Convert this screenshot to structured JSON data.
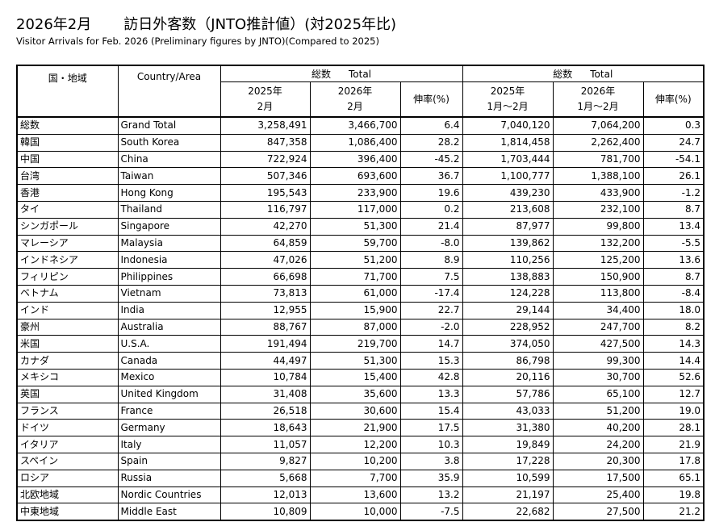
{
  "header": {
    "title": "2026年2月",
    "title_main": "訪日外客数（JNTO推計値）(対2025年比)",
    "subtitle": "Visitor Arrivals for Feb. 2026 (Preliminary figures by JNTO)(Compared to 2025)"
  },
  "table": {
    "columns": {
      "region": "国・地域",
      "country": "Country/Area",
      "group_month": {
        "label": "総数",
        "sub": "Total",
        "col_2025": [
          "2025年",
          "2月"
        ],
        "col_2026": [
          "2026年",
          "2月"
        ],
        "growth": "伸率(%)"
      },
      "group_ytd": {
        "label": "総数",
        "sub": "Total",
        "col_2025": [
          "2025年",
          "1月～2月"
        ],
        "col_2026": [
          "2026年",
          "1月～2月"
        ],
        "growth": "伸率(%)"
      }
    },
    "rows": [
      [
        "総数",
        "Grand Total",
        "3,258,491",
        "3,466,700",
        "6.4",
        "7,040,120",
        "7,064,200",
        "0.3"
      ],
      [
        "韓国",
        "South Korea",
        "847,358",
        "1,086,400",
        "28.2",
        "1,814,458",
        "2,262,400",
        "24.7"
      ],
      [
        "中国",
        "China",
        "722,924",
        "396,400",
        "-45.2",
        "1,703,444",
        "781,700",
        "-54.1"
      ],
      [
        "台湾",
        "Taiwan",
        "507,346",
        "693,600",
        "36.7",
        "1,100,777",
        "1,388,100",
        "26.1"
      ],
      [
        "香港",
        "Hong Kong",
        "195,543",
        "233,900",
        "19.6",
        "439,230",
        "433,900",
        "-1.2"
      ],
      [
        "タイ",
        "Thailand",
        "116,797",
        "117,000",
        "0.2",
        "213,608",
        "232,100",
        "8.7"
      ],
      [
        "シンガポール",
        "Singapore",
        "42,270",
        "51,300",
        "21.4",
        "87,977",
        "99,800",
        "13.4"
      ],
      [
        "マレーシア",
        "Malaysia",
        "64,859",
        "59,700",
        "-8.0",
        "139,862",
        "132,200",
        "-5.5"
      ],
      [
        "インドネシア",
        "Indonesia",
        "47,026",
        "51,200",
        "8.9",
        "110,256",
        "125,200",
        "13.6"
      ],
      [
        "フィリピン",
        "Philippines",
        "66,698",
        "71,700",
        "7.5",
        "138,883",
        "150,900",
        "8.7"
      ],
      [
        "ベトナム",
        "Vietnam",
        "73,813",
        "61,000",
        "-17.4",
        "124,228",
        "113,800",
        "-8.4"
      ],
      [
        "インド",
        "India",
        "12,955",
        "15,900",
        "22.7",
        "29,144",
        "34,400",
        "18.0"
      ],
      [
        "豪州",
        "Australia",
        "88,767",
        "87,000",
        "-2.0",
        "228,952",
        "247,700",
        "8.2"
      ],
      [
        "米国",
        "U.S.A.",
        "191,494",
        "219,700",
        "14.7",
        "374,050",
        "427,500",
        "14.3"
      ],
      [
        "カナダ",
        "Canada",
        "44,497",
        "51,300",
        "15.3",
        "86,798",
        "99,300",
        "14.4"
      ],
      [
        "メキシコ",
        "Mexico",
        "10,784",
        "15,400",
        "42.8",
        "20,116",
        "30,700",
        "52.6"
      ],
      [
        "英国",
        "United Kingdom",
        "31,408",
        "35,600",
        "13.3",
        "57,786",
        "65,100",
        "12.7"
      ],
      [
        "フランス",
        "France",
        "26,518",
        "30,600",
        "15.4",
        "43,033",
        "51,200",
        "19.0"
      ],
      [
        "ドイツ",
        "Germany",
        "18,643",
        "21,900",
        "17.5",
        "31,380",
        "40,200",
        "28.1"
      ],
      [
        "イタリア",
        "Italy",
        "11,057",
        "12,200",
        "10.3",
        "19,849",
        "24,200",
        "21.9"
      ],
      [
        "スペイン",
        "Spain",
        "9,827",
        "10,200",
        "3.8",
        "17,228",
        "20,300",
        "17.8"
      ],
      [
        "ロシア",
        "Russia",
        "5,668",
        "7,700",
        "35.9",
        "10,599",
        "17,500",
        "65.1"
      ],
      [
        "北欧地域",
        "Nordic Countries",
        "12,013",
        "13,600",
        "13.2",
        "21,197",
        "25,400",
        "19.8"
      ],
      [
        "中東地域",
        "Middle East",
        "10,809",
        "10,000",
        "-7.5",
        "22,682",
        "27,500",
        "21.2"
      ]
    ]
  }
}
